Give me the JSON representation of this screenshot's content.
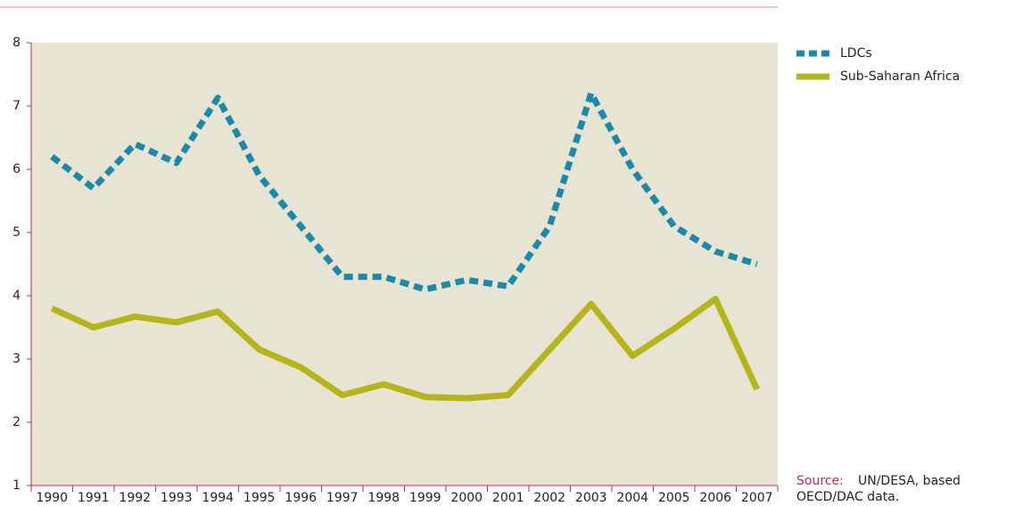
{
  "chart_data": {
    "type": "line",
    "categories": [
      "1990",
      "1991",
      "1992",
      "1993",
      "1994",
      "1995",
      "1996",
      "1997",
      "1998",
      "1999",
      "2000",
      "2001",
      "2002",
      "2003",
      "2004",
      "2005",
      "2006",
      "2007"
    ],
    "series": [
      {
        "name": "LDCs",
        "color": "#1a8aa8",
        "dashed": true,
        "values": [
          6.2,
          5.7,
          6.4,
          6.1,
          7.13,
          5.9,
          5.1,
          4.3,
          4.3,
          4.1,
          4.25,
          4.15,
          5.1,
          7.2,
          6.0,
          5.1,
          4.7,
          4.5
        ]
      },
      {
        "name": "Sub-Saharan Africa",
        "color": "#b5b41a",
        "dashed": false,
        "values": [
          3.8,
          3.5,
          3.67,
          3.58,
          3.75,
          3.15,
          2.87,
          2.43,
          2.6,
          2.4,
          2.38,
          2.43,
          3.15,
          3.87,
          3.05,
          3.48,
          3.95,
          2.52
        ]
      }
    ],
    "ylim": [
      1,
      8
    ],
    "yticks": [
      1,
      2,
      3,
      4,
      5,
      6,
      7,
      8
    ],
    "legend": "right",
    "source_label": "Source:",
    "source_lines": [
      "UN/DESA, based",
      "OECD/DAC data."
    ]
  }
}
